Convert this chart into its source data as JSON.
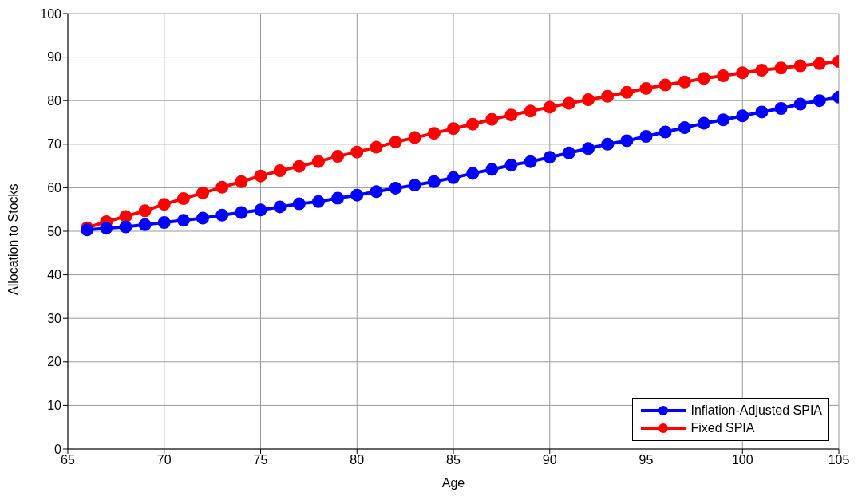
{
  "chart_data": {
    "type": "line",
    "xlabel": "Age",
    "ylabel": "Allocation to Stocks",
    "x": [
      66,
      67,
      68,
      69,
      70,
      71,
      72,
      73,
      74,
      75,
      76,
      77,
      78,
      79,
      80,
      81,
      82,
      83,
      84,
      85,
      86,
      87,
      88,
      89,
      90,
      91,
      92,
      93,
      94,
      95,
      96,
      97,
      98,
      99,
      100,
      101,
      102,
      103,
      104,
      105
    ],
    "series": [
      {
        "name": "Inflation-Adjusted SPIA",
        "color": "#0000ff",
        "values": [
          50.3,
          50.7,
          51.0,
          51.5,
          52.0,
          52.5,
          53.0,
          53.7,
          54.3,
          54.9,
          55.6,
          56.3,
          56.8,
          57.6,
          58.3,
          59.1,
          59.9,
          60.6,
          61.4,
          62.3,
          63.3,
          64.2,
          65.2,
          66.0,
          67.0,
          68.0,
          69.0,
          70.0,
          70.8,
          71.8,
          72.8,
          73.8,
          74.8,
          75.6,
          76.5,
          77.4,
          78.2,
          79.2,
          80.0,
          80.8
        ]
      },
      {
        "name": "Fixed SPIA",
        "color": "#ff0000",
        "values": [
          50.8,
          52.2,
          53.4,
          54.7,
          56.2,
          57.5,
          58.8,
          60.1,
          61.4,
          62.7,
          63.9,
          64.9,
          66.0,
          67.2,
          68.2,
          69.3,
          70.5,
          71.5,
          72.5,
          73.6,
          74.6,
          75.7,
          76.7,
          77.6,
          78.5,
          79.4,
          80.2,
          81.0,
          81.9,
          82.8,
          83.6,
          84.3,
          85.1,
          85.7,
          86.4,
          87.0,
          87.5,
          88.0,
          88.5,
          89.0
        ]
      }
    ],
    "xlim": [
      65,
      105
    ],
    "xticks": [
      65,
      70,
      75,
      80,
      85,
      90,
      95,
      100,
      105
    ],
    "ylim": [
      0,
      100
    ],
    "yticks": [
      0,
      10,
      20,
      30,
      40,
      50,
      60,
      70,
      80,
      90,
      100
    ],
    "grid": true,
    "legend": "bottom right",
    "marker": "circle",
    "line_style": "solid"
  }
}
